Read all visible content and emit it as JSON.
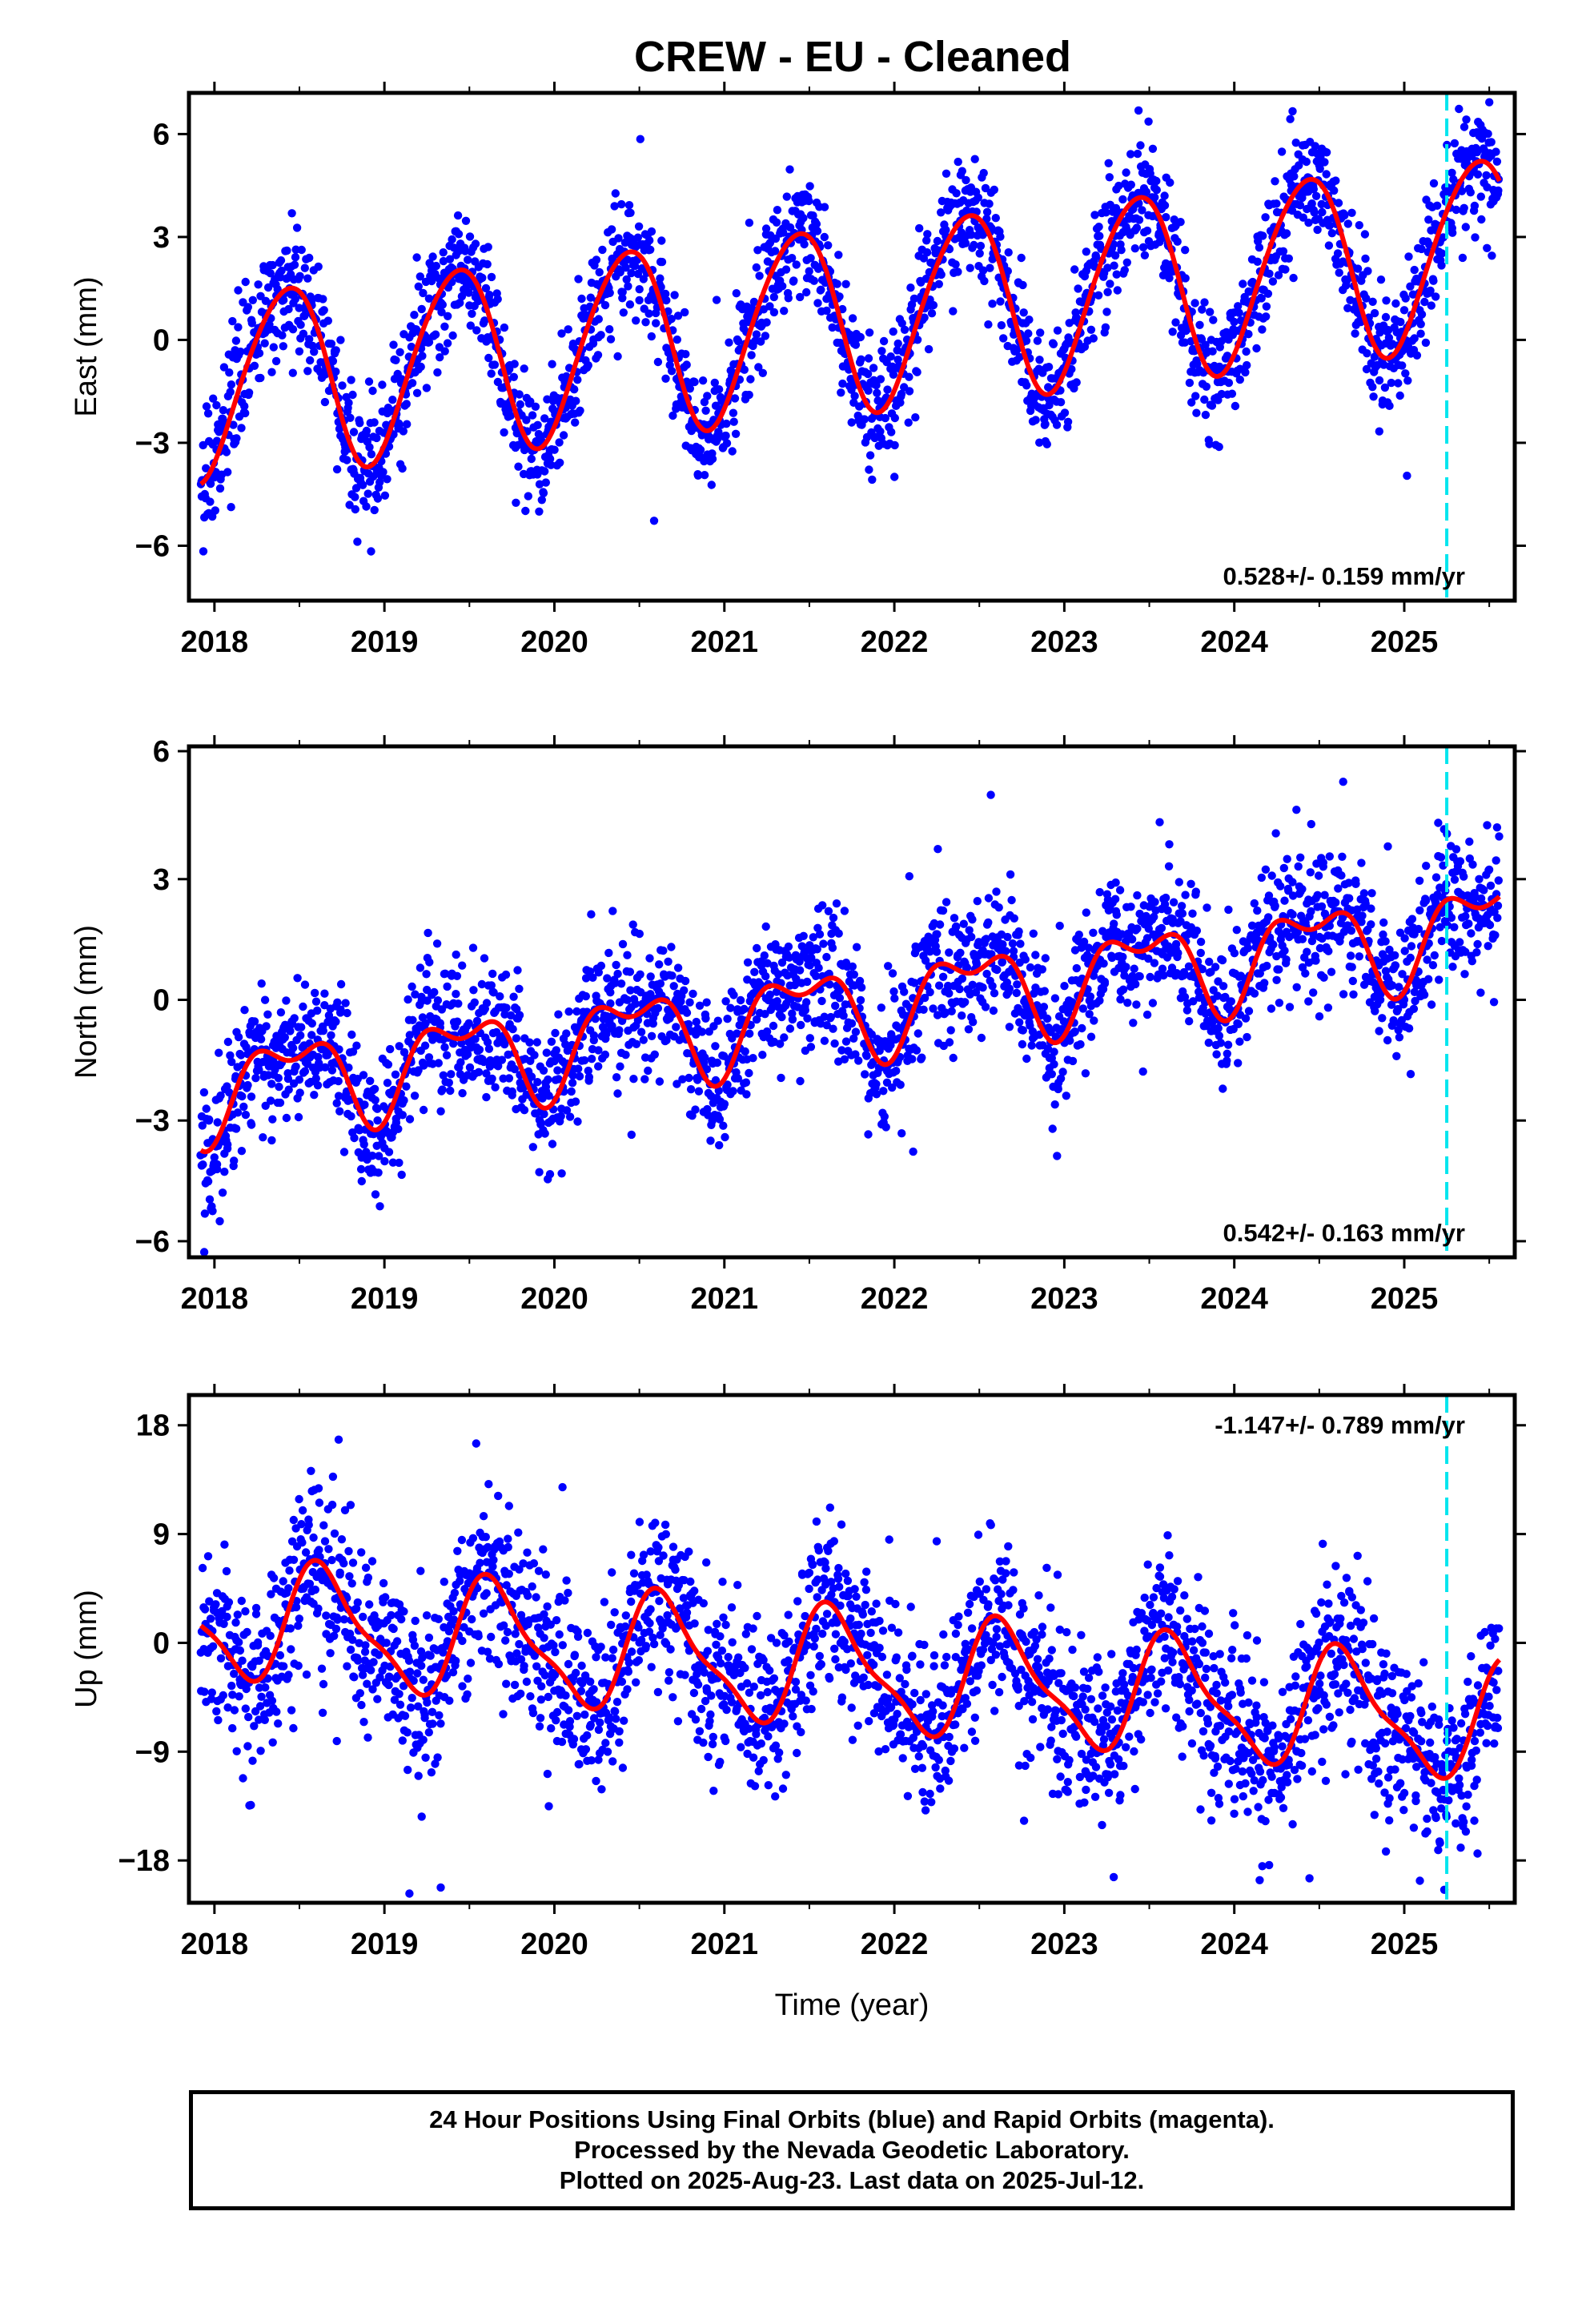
{
  "title": "CREW  - EU - Cleaned",
  "footer": {
    "line1": "24 Hour Positions Using Final Orbits (blue) and Rapid Orbits (magenta).",
    "line2": "Processed by the Nevada Geodetic Laboratory.",
    "line3": "Plotted on 2025-Aug-23. Last data on 2025-Jul-12."
  },
  "colors": {
    "points": "#0000ff",
    "model": "#ff0000",
    "event_line": "#00e5ee",
    "frame": "#000000"
  },
  "chart_data": [
    {
      "type": "scatter",
      "panel": "east",
      "ylabel": "East (mm)",
      "xlabel": "",
      "rate_label": "0.528+/- 0.159 mm/yr",
      "rate_position": "bottom-right",
      "xlim": [
        2017.85,
        2025.65
      ],
      "ylim": [
        -7.6,
        7.2
      ],
      "x_ticks": [
        2018,
        2019,
        2020,
        2021,
        2022,
        2023,
        2024,
        2025
      ],
      "y_ticks": [
        -6,
        -3,
        0,
        3,
        6
      ],
      "y_tick_labels": [
        "−6",
        "−3",
        "0",
        "3",
        "6"
      ],
      "event_line_x": 2025.25,
      "grid": false,
      "series": [
        {
          "role": "daily_positions",
          "style": "points",
          "trend": {
            "rate": 0.528,
            "offset": -1.3,
            "t0": 2018
          },
          "seasonal": {
            "amplitude": 2.7,
            "phase_year": 0.42,
            "semi_amplitude": 0.25,
            "semi_phase": 0.1
          },
          "noise_sd": 0.9,
          "n_points": 2450
        },
        {
          "role": "model_fit",
          "style": "line",
          "trend": {
            "rate": 0.528,
            "offset": -1.3,
            "t0": 2018
          },
          "seasonal": {
            "amplitude": 2.7,
            "phase_year": 0.42,
            "semi_amplitude": 0.25,
            "semi_phase": 0.1
          }
        }
      ]
    },
    {
      "type": "scatter",
      "panel": "north",
      "ylabel": "North (mm)",
      "xlabel": "",
      "rate_label": "0.542+/- 0.163 mm/yr",
      "rate_position": "bottom-right",
      "xlim": [
        2017.85,
        2025.65
      ],
      "ylim": [
        -6.4,
        6.3
      ],
      "x_ticks": [
        2018,
        2019,
        2020,
        2021,
        2022,
        2023,
        2024,
        2025
      ],
      "y_ticks": [
        -6,
        -3,
        0,
        3
      ],
      "y_tick_labels": [
        "−6",
        "−3",
        "0",
        "3"
      ],
      "y_top_tick_label": "6",
      "event_line_x": 2025.25,
      "grid": false,
      "series": [
        {
          "role": "daily_positions",
          "style": "points",
          "trend": {
            "rate": 0.542,
            "offset": -2.2,
            "t0": 2018
          },
          "seasonal": {
            "amplitude": 1.0,
            "phase_year": 0.45,
            "semi_amplitude": 0.55,
            "semi_phase": 0.2
          },
          "noise_sd": 0.85,
          "n_points": 2450
        },
        {
          "role": "model_fit",
          "style": "line",
          "trend": {
            "rate": 0.542,
            "offset": -2.2,
            "t0": 2018
          },
          "seasonal": {
            "amplitude": 1.0,
            "phase_year": 0.45,
            "semi_amplitude": 0.55,
            "semi_phase": 0.2
          }
        }
      ]
    },
    {
      "type": "scatter",
      "panel": "up",
      "ylabel": "Up (mm)",
      "xlabel": "Time (year)",
      "rate_label": "-1.147+/- 0.789 mm/yr",
      "rate_position": "top-right",
      "xlim": [
        2017.85,
        2025.65
      ],
      "ylim": [
        -21.5,
        20.5
      ],
      "x_ticks": [
        2018,
        2019,
        2020,
        2021,
        2022,
        2023,
        2024,
        2025
      ],
      "y_ticks": [
        -18,
        -9,
        0,
        9,
        18
      ],
      "y_tick_labels": [
        "−18",
        "−9",
        "0",
        "9",
        "18"
      ],
      "event_line_x": 2025.25,
      "grid": false,
      "series": [
        {
          "role": "daily_positions",
          "style": "points",
          "trend": {
            "rate": -1.147,
            "offset": 2.0,
            "t0": 2018
          },
          "seasonal": {
            "amplitude": 4.6,
            "phase_year": 0.65,
            "semi_amplitude": 1.4,
            "semi_phase": 0.05
          },
          "noise_sd": 3.6,
          "n_points": 2450
        },
        {
          "role": "model_fit",
          "style": "line",
          "trend": {
            "rate": -1.147,
            "offset": 2.0,
            "t0": 2018
          },
          "seasonal": {
            "amplitude": 4.6,
            "phase_year": 0.65,
            "semi_amplitude": 1.4,
            "semi_phase": 0.05
          }
        }
      ]
    }
  ]
}
